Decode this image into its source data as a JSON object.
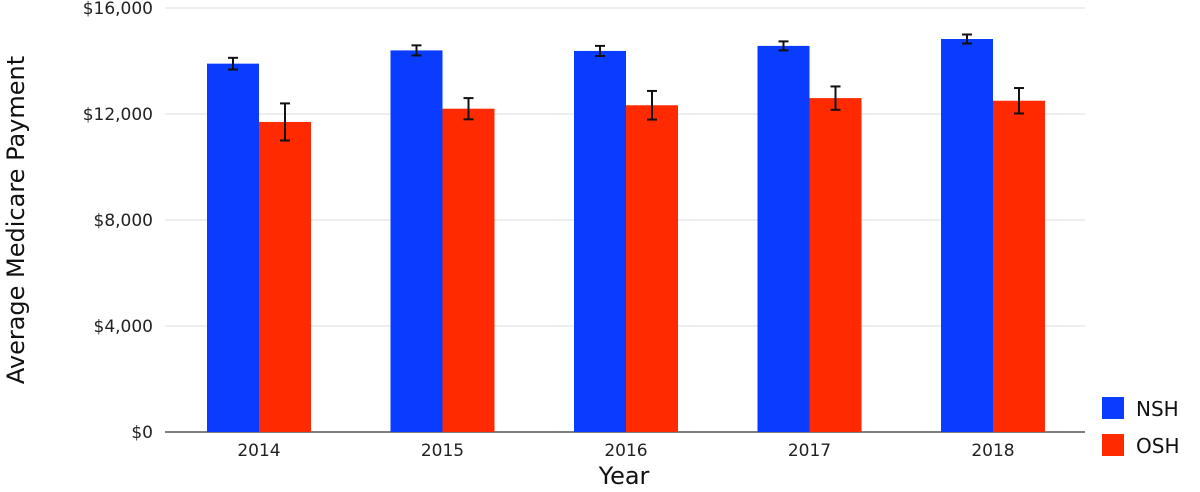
{
  "chart_data": {
    "type": "bar",
    "xlabel": "Year",
    "ylabel": "Average Medicare Payment",
    "categories": [
      "2014",
      "2015",
      "2016",
      "2017",
      "2018"
    ],
    "ylim": [
      0,
      16000
    ],
    "yticks": [
      0,
      4000,
      8000,
      12000,
      16000
    ],
    "ytick_labels": [
      "$0",
      "$4,000",
      "$8,000",
      "$12,000",
      "$16,000"
    ],
    "grid": true,
    "legend_position": "bottom-right",
    "series": [
      {
        "name": "NSH",
        "color": "#0a3cff",
        "values": [
          13900,
          14400,
          14380,
          14570,
          14830
        ],
        "error": [
          220,
          190,
          190,
          170,
          170
        ]
      },
      {
        "name": "OSH",
        "color": "#ff2a00",
        "values": [
          11700,
          12200,
          12330,
          12600,
          12500
        ],
        "error": [
          700,
          400,
          540,
          440,
          480
        ]
      }
    ]
  }
}
